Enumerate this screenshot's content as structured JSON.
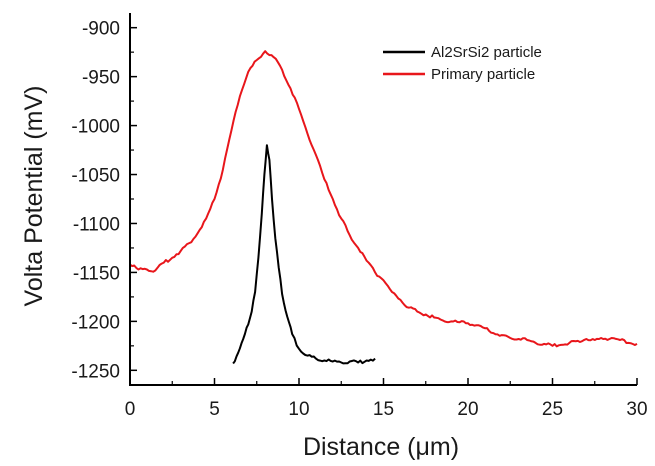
{
  "chart_data": {
    "type": "line",
    "title": "",
    "xlabel": "Distance (μm)",
    "ylabel": "Volta Potential (mV)",
    "xlim": [
      0,
      30
    ],
    "ylim": [
      -1265,
      -885
    ],
    "x_ticks": [
      0,
      5,
      10,
      15,
      20,
      25,
      30
    ],
    "x_tick_labels": [
      "0",
      "5",
      "10",
      "15",
      "20",
      "25",
      "30"
    ],
    "y_ticks": [
      -900,
      -950,
      -1000,
      -1050,
      -1100,
      -1150,
      -1200,
      -1250
    ],
    "y_tick_labels": [
      "-900",
      "-950",
      "-1000",
      "-1050",
      "-1100",
      "-1150",
      "-1200",
      "-1250"
    ],
    "grid": false,
    "legend_position": "top-right",
    "series": [
      {
        "name": "Al2SrSi2 particle",
        "color": "#000000",
        "x": [
          6.1,
          6.4,
          6.7,
          7.0,
          7.2,
          7.4,
          7.6,
          7.8,
          7.95,
          8.1,
          8.25,
          8.4,
          8.6,
          8.8,
          9.0,
          9.3,
          9.6,
          10.0,
          10.5,
          11.0,
          11.5,
          12.0,
          12.5,
          13.0,
          13.5,
          14.0,
          14.5
        ],
        "y": [
          -1243,
          -1232,
          -1218,
          -1203,
          -1190,
          -1170,
          -1135,
          -1090,
          -1050,
          -1020,
          -1035,
          -1075,
          -1115,
          -1145,
          -1172,
          -1195,
          -1213,
          -1228,
          -1235,
          -1238,
          -1240,
          -1241,
          -1242,
          -1241,
          -1242,
          -1240,
          -1238
        ]
      },
      {
        "name": "Primary particle",
        "color": "#e8161b",
        "x": [
          0,
          0.5,
          1,
          1.5,
          2,
          2.5,
          3,
          3.5,
          4,
          4.5,
          5,
          5.5,
          6,
          6.5,
          7,
          7.5,
          8,
          8.5,
          9,
          9.5,
          10,
          10.5,
          11,
          11.5,
          12,
          12.5,
          13,
          13.5,
          14,
          14.5,
          15,
          15.5,
          16,
          16.5,
          17,
          17.5,
          18,
          18.5,
          19,
          19.5,
          20,
          20.5,
          21,
          21.5,
          22,
          22.5,
          23,
          23.5,
          24,
          24.5,
          25,
          25.5,
          26,
          26.5,
          27,
          27.5,
          28,
          28.5,
          29,
          29.5,
          30
        ],
        "y": [
          -1142,
          -1147,
          -1147,
          -1148,
          -1140,
          -1135,
          -1128,
          -1120,
          -1110,
          -1095,
          -1075,
          -1045,
          -1005,
          -970,
          -945,
          -933,
          -924,
          -930,
          -943,
          -962,
          -983,
          -1008,
          -1030,
          -1055,
          -1075,
          -1095,
          -1112,
          -1125,
          -1138,
          -1150,
          -1158,
          -1170,
          -1178,
          -1186,
          -1190,
          -1193,
          -1196,
          -1199,
          -1200,
          -1201,
          -1202,
          -1204,
          -1207,
          -1212,
          -1214,
          -1217,
          -1218,
          -1219,
          -1222,
          -1223,
          -1225,
          -1224,
          -1222,
          -1220,
          -1218,
          -1219,
          -1218,
          -1217,
          -1219,
          -1222,
          -1223
        ]
      }
    ]
  }
}
